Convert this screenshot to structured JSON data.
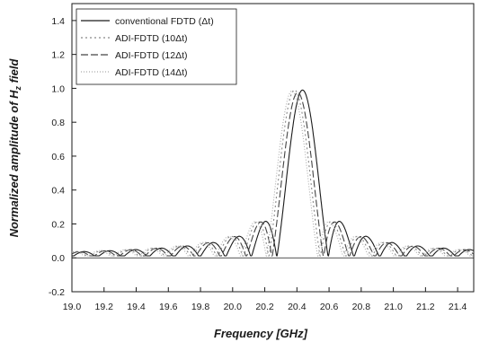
{
  "chart_data": {
    "type": "line",
    "xlabel": "Frequency [GHz]",
    "ylabel_parts": [
      "Normalized amplitude of ",
      "H",
      "z",
      " field"
    ],
    "xlim": [
      19.0,
      21.5
    ],
    "ylim": [
      -0.2,
      1.5
    ],
    "x_ticks": [
      "19.0",
      "19.2",
      "19.4",
      "19.6",
      "19.8",
      "20.0",
      "20.2",
      "20.4",
      "20.6",
      "20.8",
      "21.0",
      "21.2",
      "21.4"
    ],
    "y_ticks": [
      "-0.2",
      "0.0",
      "0.2",
      "0.4",
      "0.6",
      "0.8",
      "1.0",
      "1.2",
      "1.4"
    ],
    "grid": false,
    "legend_position": "top-left",
    "legend_color": "#1a1a1a",
    "series": [
      {
        "name": "conventional FDTD (Δt)",
        "center": 20.435,
        "peak": 0.99,
        "halfwidth": 0.16,
        "color": "#1a1a1a",
        "dash": "none"
      },
      {
        "name": "ADI-FDTD (10Δt)",
        "center": 20.385,
        "peak": 0.99,
        "halfwidth": 0.16,
        "color": "#888888",
        "dash": "2,3"
      },
      {
        "name": "ADI-FDTD (12Δt)",
        "center": 20.405,
        "peak": 0.975,
        "halfwidth": 0.16,
        "color": "#444444",
        "dash": "8,3"
      },
      {
        "name": "ADI-FDTD (14Δt)",
        "center": 20.37,
        "peak": 0.985,
        "halfwidth": 0.16,
        "color": "#aaaaaa",
        "dash": "1,2"
      }
    ]
  }
}
